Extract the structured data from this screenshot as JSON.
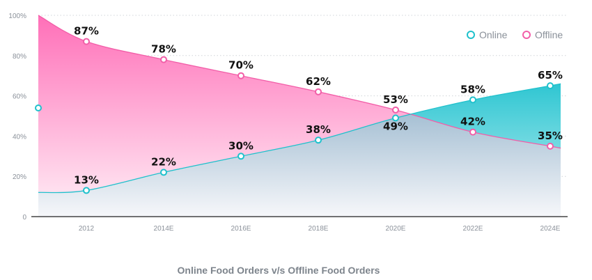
{
  "chart_data": {
    "type": "area",
    "title": "Online Food Orders v/s Offline Food Orders",
    "categories": [
      "2012",
      "2014E",
      "2016E",
      "2018E",
      "2020E",
      "2022E",
      "2024E"
    ],
    "yticks": [
      "0",
      "20%",
      "40%",
      "60%",
      "80%",
      "100%"
    ],
    "ylim": [
      0,
      100
    ],
    "grid": true,
    "legend_position": "top-right",
    "series": [
      {
        "name": "Online",
        "color": "#1fc1cc",
        "values": [
          13,
          22,
          30,
          38,
          49,
          58,
          65
        ],
        "labels": [
          "13%",
          "22%",
          "30%",
          "38%",
          "49%",
          "58%",
          "65%"
        ]
      },
      {
        "name": "Offline",
        "color": "#f25ea8",
        "values": [
          87,
          78,
          70,
          62,
          53,
          42,
          35
        ],
        "labels": [
          "87%",
          "78%",
          "70%",
          "62%",
          "53%",
          "42%",
          "35%"
        ]
      }
    ]
  }
}
